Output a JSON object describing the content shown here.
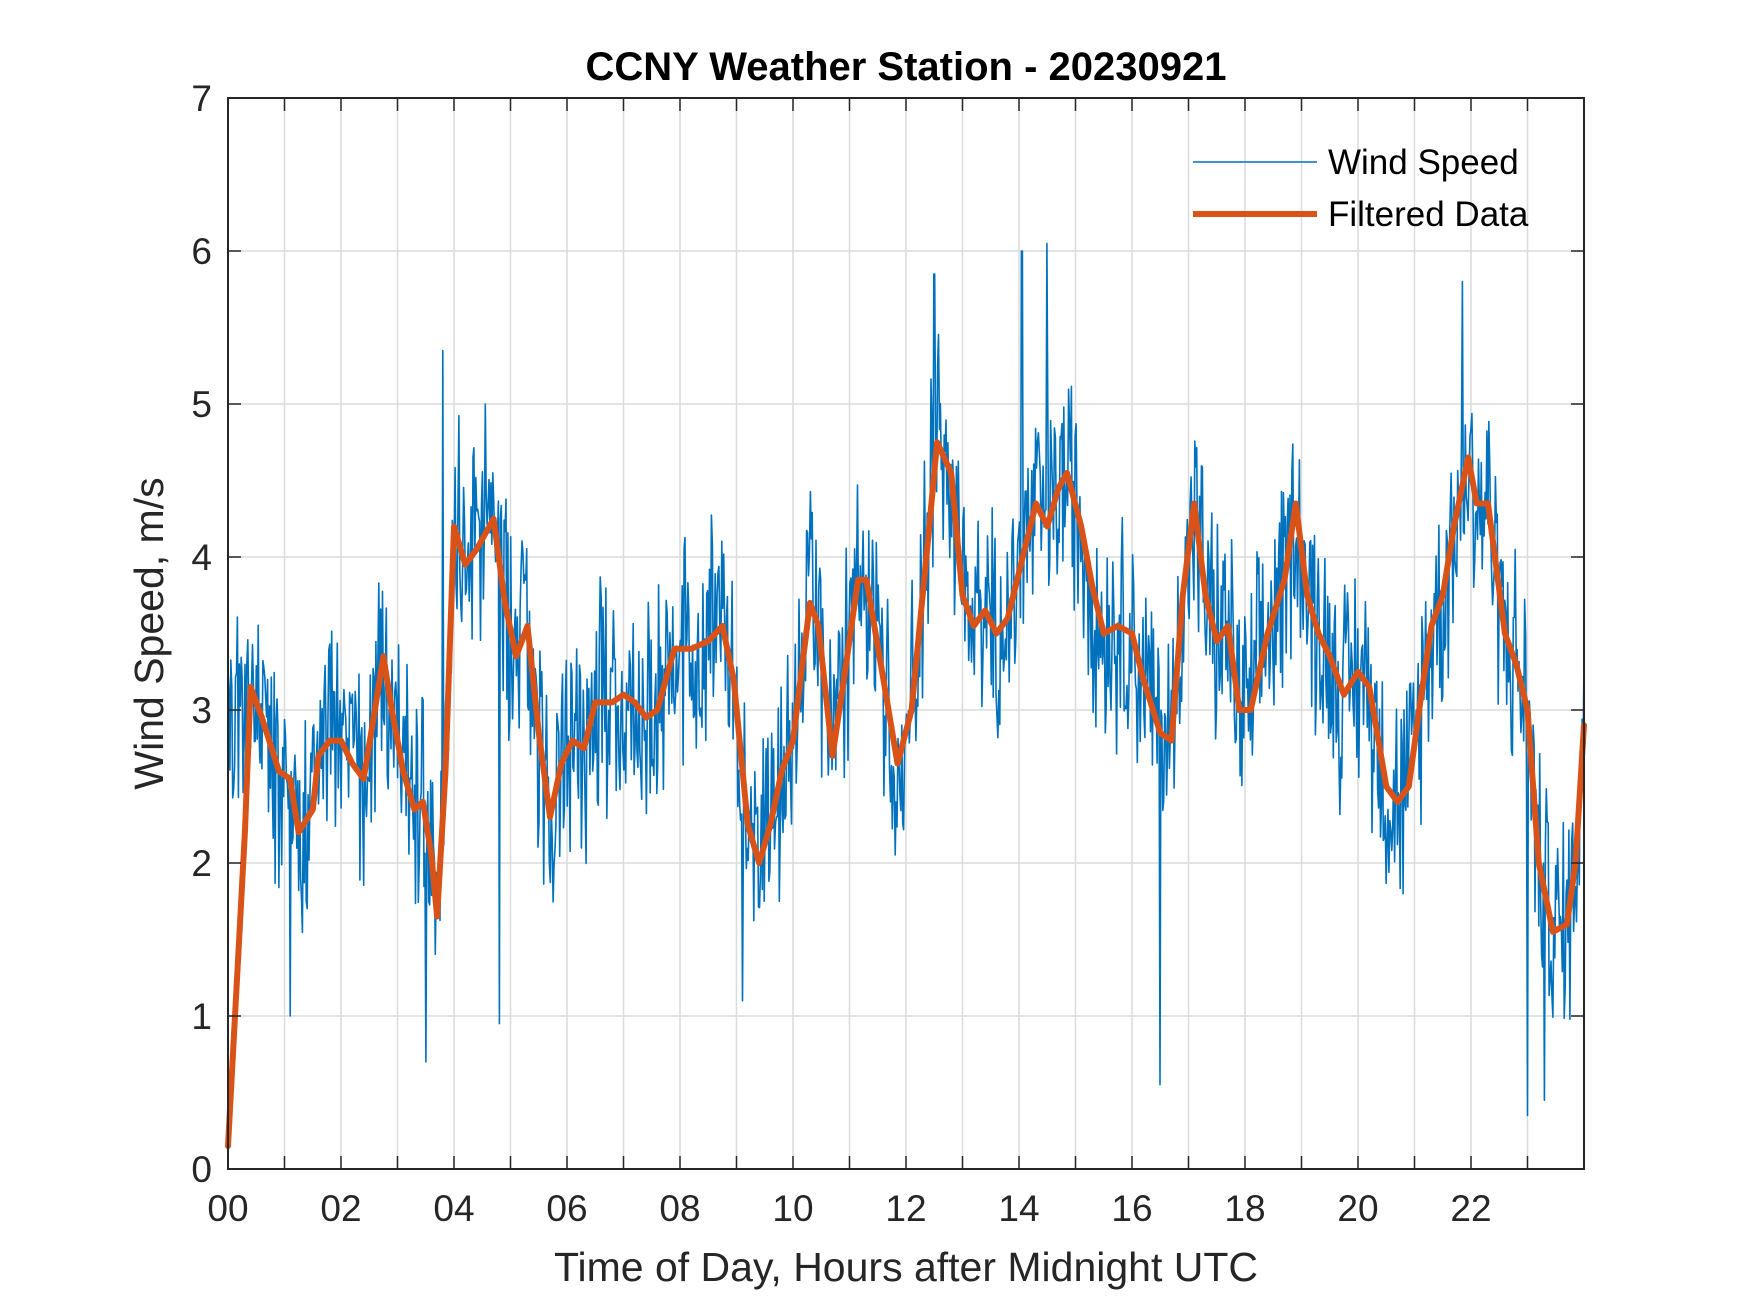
{
  "chart_data": {
    "type": "line",
    "title": "CCNY Weather Station - 20230921",
    "xlabel": "Time of Day, Hours after Midnight UTC",
    "ylabel": "Wind Speed, m/s",
    "xlim": [
      0,
      24
    ],
    "ylim": [
      0,
      7
    ],
    "x_ticks": [
      0,
      2,
      4,
      6,
      8,
      10,
      12,
      14,
      16,
      18,
      20,
      22
    ],
    "x_tick_labels": [
      "00",
      "02",
      "04",
      "06",
      "08",
      "10",
      "12",
      "14",
      "16",
      "18",
      "20",
      "22"
    ],
    "x_minor_grid_step": 1,
    "y_ticks": [
      0,
      1,
      2,
      3,
      4,
      5,
      6,
      7
    ],
    "y_tick_labels": [
      "0",
      "1",
      "2",
      "3",
      "4",
      "5",
      "6",
      "7"
    ],
    "grid": true,
    "legend": {
      "position": "top-right",
      "entries": [
        "Wind Speed",
        "Filtered Data"
      ]
    },
    "series": [
      {
        "name": "Wind Speed",
        "color": "#0072BD",
        "style": "thin-noisy",
        "note": "high-frequency raw samples (approx. 1-min); envelope approximated around filtered trend",
        "noise_amplitude": 0.9,
        "approx_peaks": [
          {
            "x": 3.8,
            "y": 5.35
          },
          {
            "x": 4.55,
            "y": 5.0
          },
          {
            "x": 12.5,
            "y": 5.85
          },
          {
            "x": 14.05,
            "y": 6.0
          },
          {
            "x": 14.5,
            "y": 6.05
          },
          {
            "x": 21.85,
            "y": 5.8
          }
        ],
        "approx_troughs": [
          {
            "x": 1.1,
            "y": 1.0
          },
          {
            "x": 3.5,
            "y": 0.7
          },
          {
            "x": 4.8,
            "y": 0.95
          },
          {
            "x": 9.1,
            "y": 1.1
          },
          {
            "x": 16.5,
            "y": 0.55
          },
          {
            "x": 23.0,
            "y": 0.35
          },
          {
            "x": 23.3,
            "y": 0.45
          }
        ]
      },
      {
        "name": "Filtered Data",
        "color": "#D95319",
        "style": "thick",
        "x": [
          0.0,
          0.3,
          0.4,
          0.6,
          0.9,
          1.1,
          1.25,
          1.5,
          1.6,
          1.8,
          2.0,
          2.2,
          2.4,
          2.6,
          2.75,
          2.9,
          3.1,
          3.3,
          3.45,
          3.6,
          3.7,
          3.85,
          4.0,
          4.2,
          4.4,
          4.7,
          4.9,
          5.1,
          5.3,
          5.5,
          5.7,
          5.9,
          6.1,
          6.3,
          6.5,
          6.8,
          7.0,
          7.2,
          7.4,
          7.6,
          7.9,
          8.2,
          8.5,
          8.75,
          8.95,
          9.2,
          9.4,
          9.6,
          9.8,
          10.0,
          10.3,
          10.45,
          10.7,
          10.9,
          11.15,
          11.3,
          11.6,
          11.85,
          12.1,
          12.4,
          12.55,
          12.8,
          13.0,
          13.2,
          13.4,
          13.6,
          13.8,
          14.0,
          14.3,
          14.5,
          14.7,
          14.85,
          15.1,
          15.3,
          15.5,
          15.75,
          16.0,
          16.2,
          16.5,
          16.7,
          16.9,
          17.1,
          17.3,
          17.5,
          17.7,
          17.9,
          18.1,
          18.4,
          18.7,
          18.9,
          19.1,
          19.3,
          19.5,
          19.75,
          20.0,
          20.2,
          20.5,
          20.7,
          20.9,
          21.1,
          21.3,
          21.5,
          21.7,
          21.95,
          22.1,
          22.3,
          22.6,
          22.8,
          23.0,
          23.2,
          23.45,
          23.7,
          23.85,
          24.0
        ],
        "y": [
          0.15,
          2.2,
          3.15,
          2.95,
          2.6,
          2.55,
          2.2,
          2.35,
          2.7,
          2.8,
          2.8,
          2.65,
          2.55,
          3.0,
          3.35,
          3.0,
          2.6,
          2.35,
          2.4,
          2.05,
          1.65,
          2.6,
          4.2,
          3.95,
          4.05,
          4.25,
          3.7,
          3.35,
          3.55,
          2.85,
          2.3,
          2.65,
          2.8,
          2.75,
          3.05,
          3.05,
          3.1,
          3.05,
          2.95,
          3.0,
          3.4,
          3.4,
          3.45,
          3.55,
          3.2,
          2.25,
          2.0,
          2.25,
          2.6,
          2.8,
          3.7,
          3.55,
          2.7,
          3.2,
          3.85,
          3.85,
          3.2,
          2.65,
          3.0,
          4.15,
          4.75,
          4.55,
          3.75,
          3.55,
          3.65,
          3.5,
          3.6,
          3.9,
          4.35,
          4.2,
          4.45,
          4.55,
          4.2,
          3.8,
          3.5,
          3.55,
          3.5,
          3.2,
          2.85,
          2.8,
          3.75,
          4.35,
          3.75,
          3.45,
          3.55,
          3.0,
          3.0,
          3.5,
          3.85,
          4.35,
          3.75,
          3.5,
          3.35,
          3.1,
          3.25,
          3.15,
          2.5,
          2.4,
          2.5,
          3.05,
          3.55,
          3.75,
          4.2,
          4.65,
          4.35,
          4.35,
          3.5,
          3.3,
          3.0,
          2.0,
          1.55,
          1.6,
          2.0,
          2.9
        ]
      }
    ]
  }
}
